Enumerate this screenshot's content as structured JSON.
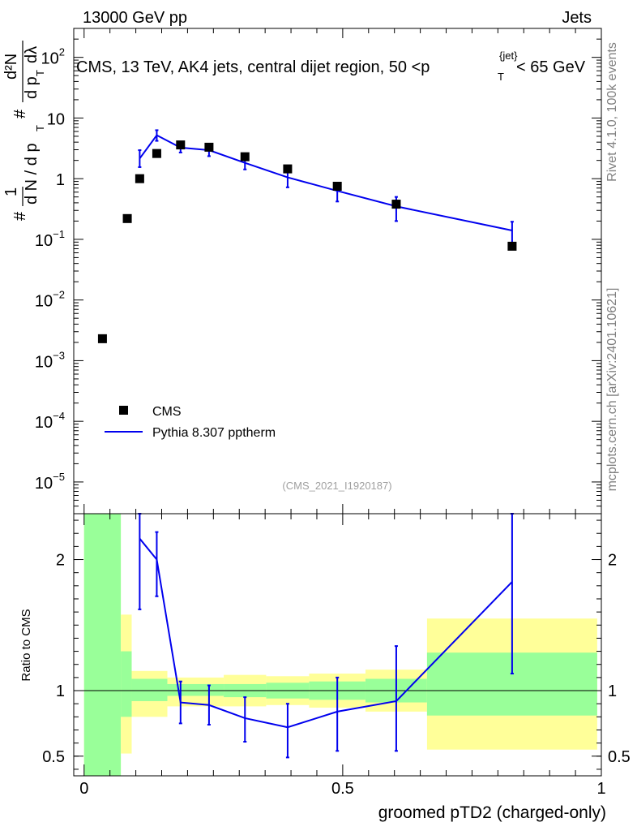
{
  "header": {
    "left": "13000 GeV pp",
    "right": "Jets"
  },
  "title": {
    "prefix": "CMS, 13 TeV, AK4 jets, central dijet region, 50 <",
    "p": "p",
    "sub": "T",
    "sup": "{jet}",
    "suffix": "< 65 GeV"
  },
  "side_labels": {
    "rivet": "Rivet 4.1.0,  100k events",
    "mcplots": "mcplots.cern.ch [arXiv:2401.10621]"
  },
  "analysis_id": "(CMS_2021_I1920187)",
  "colors": {
    "mc": "#0000ee",
    "band_inner": "#99ff99",
    "band_outer": "#ffff99",
    "data": "#000000"
  },
  "chart_data": [
    {
      "type": "scatter",
      "panel": "main",
      "ylabel": "1/dN/dpT # d2N/dpT dλ",
      "ylabel_parts": {
        "hash": "#",
        "one": "1",
        "dn": "d N / d p",
        "t": "T",
        "d2n": "d²N",
        "dpt": "d p",
        "dl": "dλ"
      },
      "yscale": "log",
      "ylim": [
        3e-06,
        300
      ],
      "xlim": [
        -0.02,
        1.0
      ],
      "yticks": [
        {
          "v": 100,
          "b": "10",
          "e": "2"
        },
        {
          "v": 10,
          "b": "10",
          "e": ""
        },
        {
          "v": 1,
          "b": "1",
          "e": ""
        },
        {
          "v": 0.1,
          "b": "10",
          "e": "−1"
        },
        {
          "v": 0.01,
          "b": "10",
          "e": "−2"
        },
        {
          "v": 0.001,
          "b": "10",
          "e": "−3"
        },
        {
          "v": 0.0001,
          "b": "10",
          "e": "−4"
        },
        {
          "v": 1e-05,
          "b": "10",
          "e": "−5"
        }
      ],
      "legend": {
        "data": "CMS",
        "mc": "Pythia 8.307 pptherm"
      },
      "series": [
        {
          "name": "CMS",
          "x": [
            0.0355,
            0.0835,
            0.1075,
            0.1405,
            0.1865,
            0.2415,
            0.311,
            0.3935,
            0.4895,
            0.6035,
            0.8275
          ],
          "y": [
            0.0023,
            0.22,
            1.0,
            2.6,
            3.6,
            3.3,
            2.3,
            1.45,
            0.75,
            0.38,
            0.077
          ]
        },
        {
          "name": "Pythia 8.307 pptherm",
          "x": [
            0.1075,
            0.1405,
            0.1865,
            0.2415,
            0.311,
            0.3935,
            0.4895,
            0.6035,
            0.8275
          ],
          "y": [
            2.15,
            5.2,
            3.25,
            2.95,
            1.82,
            1.05,
            0.63,
            0.35,
            0.14
          ],
          "ylow": [
            1.55,
            4.2,
            2.7,
            2.35,
            1.42,
            0.72,
            0.42,
            0.2,
            0.085
          ],
          "yhigh": [
            2.95,
            6.3,
            3.8,
            3.55,
            2.22,
            1.4,
            0.85,
            0.5,
            0.195
          ]
        }
      ]
    },
    {
      "type": "line",
      "panel": "ratio",
      "ylabel": "Ratio to CMS",
      "xlabel": "groomed pTD2 (charged-only)",
      "ylim": [
        0.35,
        2.35
      ],
      "xlim": [
        -0.02,
        1.0
      ],
      "yticks": [
        0.5,
        1,
        2
      ],
      "ytick_labels": [
        "0.5",
        "1",
        "2"
      ],
      "xticks": [
        0,
        0.5,
        1
      ],
      "xtick_labels": [
        "0",
        "0.5",
        "1"
      ],
      "bands": [
        {
          "x0": 0.0,
          "x1": 0.071,
          "in_lo": 0.35,
          "in_hi": 2.35,
          "out_lo": 0.35,
          "out_hi": 2.35
        },
        {
          "x0": 0.071,
          "x1": 0.092,
          "in_lo": 0.8,
          "in_hi": 1.3,
          "out_lo": 0.52,
          "out_hi": 1.58
        },
        {
          "x0": 0.092,
          "x1": 0.161,
          "in_lo": 0.92,
          "in_hi": 1.09,
          "out_lo": 0.8,
          "out_hi": 1.15
        },
        {
          "x0": 0.161,
          "x1": 0.27,
          "in_lo": 0.96,
          "in_hi": 1.05,
          "out_lo": 0.88,
          "out_hi": 1.1
        },
        {
          "x0": 0.27,
          "x1": 0.352,
          "in_lo": 0.95,
          "in_hi": 1.05,
          "out_lo": 0.88,
          "out_hi": 1.12
        },
        {
          "x0": 0.352,
          "x1": 0.435,
          "in_lo": 0.94,
          "in_hi": 1.06,
          "out_lo": 0.89,
          "out_hi": 1.11
        },
        {
          "x0": 0.435,
          "x1": 0.544,
          "in_lo": 0.93,
          "in_hi": 1.07,
          "out_lo": 0.87,
          "out_hi": 1.13
        },
        {
          "x0": 0.544,
          "x1": 0.663,
          "in_lo": 0.91,
          "in_hi": 1.09,
          "out_lo": 0.84,
          "out_hi": 1.16
        },
        {
          "x0": 0.663,
          "x1": 0.992,
          "in_lo": 0.81,
          "in_hi": 1.29,
          "out_lo": 0.55,
          "out_hi": 1.55
        }
      ],
      "series": [
        {
          "name": "Pythia 8.307 pptherm / CMS",
          "x": [
            0.1075,
            0.1405,
            0.1865,
            0.2415,
            0.311,
            0.3935,
            0.4895,
            0.6035,
            0.8275
          ],
          "y": [
            2.16,
            2.0,
            0.91,
            0.89,
            0.79,
            0.72,
            0.84,
            0.92,
            1.83
          ],
          "ylow": [
            1.62,
            1.72,
            0.75,
            0.74,
            0.61,
            0.49,
            0.54,
            0.54,
            1.13
          ],
          "yhigh": [
            2.35,
            2.21,
            1.07,
            1.04,
            0.95,
            0.9,
            1.1,
            1.34,
            2.35
          ]
        }
      ]
    }
  ]
}
